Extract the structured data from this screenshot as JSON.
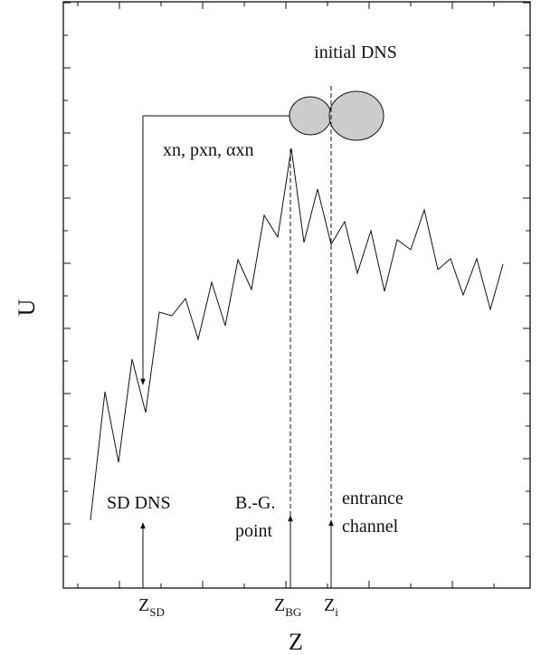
{
  "axes": {
    "y_label": "U",
    "x_label": "Z"
  },
  "labels": {
    "initial_dns": "initial DNS",
    "decay": "xn, pxn, αxn",
    "sd_dns": "SD DNS",
    "bg_point": [
      "B.-G.",
      "point"
    ],
    "entrance": [
      "entrance",
      "channel"
    ]
  },
  "x_marks": [
    {
      "main": "Z",
      "sub": "SD"
    },
    {
      "main": "Z",
      "sub": "BG"
    },
    {
      "main": "Z",
      "sub": "i"
    }
  ]
}
